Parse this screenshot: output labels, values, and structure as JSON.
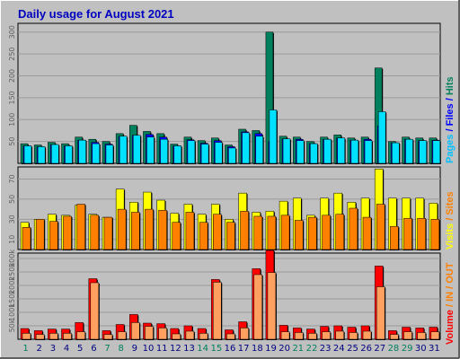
{
  "title": "Daily usage for August 2021",
  "colors": {
    "hits": "#00805c",
    "files": "#0000ff",
    "pages": "#00e0ff",
    "visits": "#ffff00",
    "sites": "#ff8000",
    "kbin": "#ff0000",
    "kbout": "#ff8000",
    "volume": "#ff0000",
    "weekend_day": "#00805c",
    "weekday_day": "#000080",
    "panel_bg": "#c0c0c0",
    "title": "#0000c0"
  },
  "side_labels": {
    "top": [
      {
        "text": "Pages",
        "color": "#00c0ff"
      },
      {
        "text": " / ",
        "color": "#0000ff"
      },
      {
        "text": "Files",
        "color": "#0000ff"
      },
      {
        "text": " / ",
        "color": "#0000ff"
      },
      {
        "text": "Hits",
        "color": "#00805c"
      }
    ],
    "middle": [
      {
        "text": "Visits",
        "color": "#ffff00"
      },
      {
        "text": " / ",
        "color": "#ff8000"
      },
      {
        "text": "Sites",
        "color": "#ff8000"
      }
    ],
    "bottom": [
      {
        "text": "Volume",
        "color": "#ff0000"
      },
      {
        "text": " / ",
        "color": "#ff8000"
      },
      {
        "text": "IN",
        "color": "#ff8000"
      },
      {
        "text": " / ",
        "color": "#ff8000"
      },
      {
        "text": "OUT",
        "color": "#ff8000"
      }
    ]
  },
  "chart_data": [
    {
      "type": "bar",
      "name": "Pages / Files / Hits",
      "categories": [
        "1",
        "2",
        "3",
        "4",
        "5",
        "6",
        "7",
        "8",
        "9",
        "10",
        "11",
        "12",
        "13",
        "14",
        "15",
        "16",
        "17",
        "18",
        "19",
        "20",
        "21",
        "22",
        "23",
        "24",
        "25",
        "26",
        "27",
        "28",
        "29",
        "30",
        "31"
      ],
      "weekend_days": [
        "1",
        "7",
        "8",
        "14",
        "15",
        "21",
        "22",
        "28",
        "29"
      ],
      "yticks": [
        50,
        100,
        150,
        200,
        250,
        300
      ],
      "ylim": [
        0,
        320
      ],
      "series": [
        {
          "name": "Hits",
          "values": [
            45,
            42,
            48,
            45,
            60,
            55,
            50,
            68,
            87,
            73,
            68,
            44,
            60,
            52,
            58,
            42,
            78,
            75,
            300,
            62,
            60,
            50,
            60,
            65,
            58,
            60,
            218,
            50,
            60,
            58,
            58
          ]
        },
        {
          "name": "Files",
          "values": [
            40,
            38,
            43,
            40,
            53,
            48,
            44,
            62,
            64,
            66,
            60,
            40,
            54,
            46,
            52,
            38,
            72,
            68,
            50,
            56,
            55,
            45,
            55,
            58,
            53,
            55,
            85,
            47,
            55,
            52,
            53
          ]
        },
        {
          "name": "Pages",
          "values": [
            40,
            38,
            43,
            40,
            53,
            45,
            42,
            62,
            64,
            60,
            55,
            40,
            52,
            44,
            48,
            35,
            70,
            62,
            122,
            56,
            52,
            45,
            55,
            58,
            53,
            52,
            118,
            47,
            55,
            52,
            52
          ]
        }
      ]
    },
    {
      "type": "bar",
      "name": "Visits / Sites",
      "categories": [
        "1",
        "2",
        "3",
        "4",
        "5",
        "6",
        "7",
        "8",
        "9",
        "10",
        "11",
        "12",
        "13",
        "14",
        "15",
        "16",
        "17",
        "18",
        "19",
        "20",
        "21",
        "22",
        "23",
        "24",
        "25",
        "26",
        "27",
        "28",
        "29",
        "30",
        "31"
      ],
      "yticks": [
        10,
        30,
        50,
        70
      ],
      "ylim": [
        0,
        82
      ],
      "series": [
        {
          "name": "Visits",
          "values": [
            27,
            30,
            35,
            34,
            44,
            35,
            32,
            60,
            47,
            57,
            49,
            36,
            45,
            35,
            45,
            30,
            56,
            37,
            38,
            48,
            51,
            34,
            51,
            56,
            47,
            51,
            80,
            51,
            51,
            51,
            46
          ]
        },
        {
          "name": "Sites",
          "values": [
            22,
            30,
            28,
            33,
            45,
            34,
            32,
            40,
            37,
            40,
            39,
            27,
            37,
            27,
            35,
            27,
            38,
            33,
            33,
            34,
            29,
            32,
            34,
            35,
            41,
            32,
            45,
            23,
            31,
            31,
            30
          ]
        }
      ]
    },
    {
      "type": "bar",
      "name": "Volume / IN / OUT",
      "categories": [
        "1",
        "2",
        "3",
        "4",
        "5",
        "6",
        "7",
        "8",
        "9",
        "10",
        "11",
        "12",
        "13",
        "14",
        "15",
        "16",
        "17",
        "18",
        "19",
        "20",
        "21",
        "22",
        "23",
        "24",
        "25",
        "26",
        "27",
        "28",
        "29",
        "30",
        "31"
      ],
      "yticks": [
        "50k",
        "100k",
        "150k",
        "200k",
        "250k",
        "300k"
      ],
      "ytick_values": [
        50,
        100,
        150,
        200,
        250,
        300
      ],
      "ylim": [
        0,
        320
      ],
      "series": [
        {
          "name": "Volume",
          "values": [
            40,
            32,
            38,
            38,
            62,
            225,
            32,
            55,
            92,
            60,
            58,
            40,
            50,
            40,
            222,
            35,
            65,
            262,
            330,
            52,
            42,
            38,
            48,
            50,
            45,
            50,
            272,
            32,
            45,
            42,
            45
          ]
        },
        {
          "name": "IN",
          "values": [
            22,
            18,
            22,
            22,
            28,
            210,
            18,
            28,
            62,
            48,
            42,
            20,
            30,
            22,
            212,
            20,
            42,
            240,
            248,
            28,
            25,
            22,
            28,
            30,
            25,
            30,
            195,
            18,
            28,
            25,
            28
          ]
        }
      ]
    }
  ]
}
